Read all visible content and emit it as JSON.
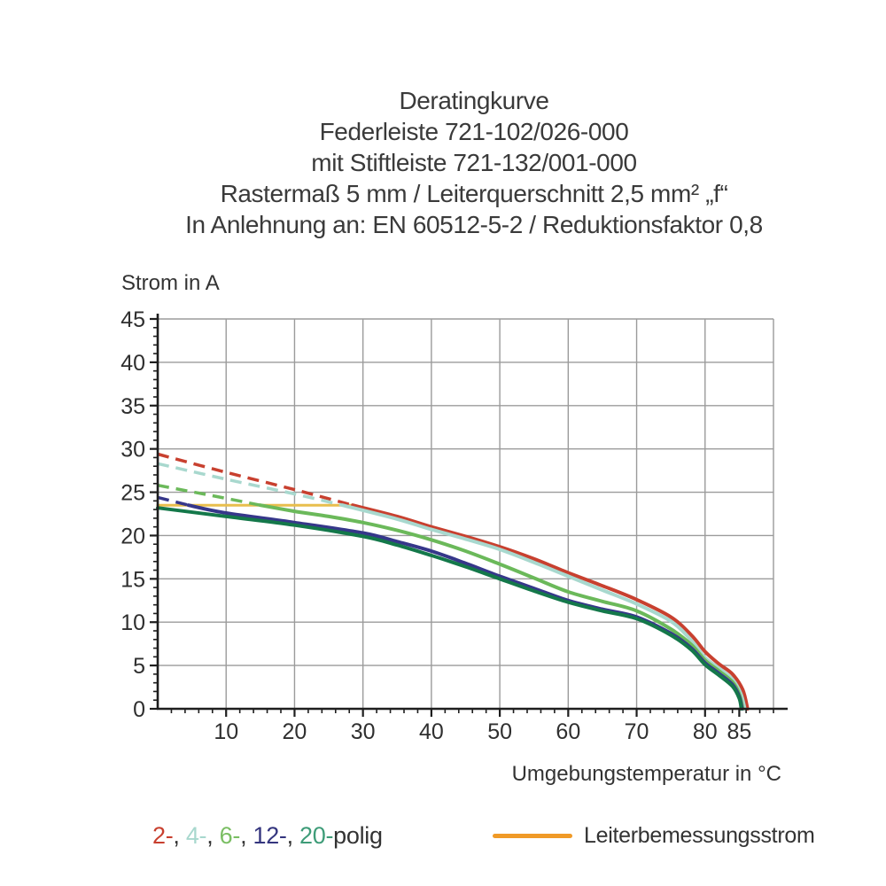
{
  "header": {
    "lines": [
      "Deratingkurve",
      "Federleiste 721-102/026-000",
      "mit Stiftleiste 721-132/001-000",
      "Rastermaß 5 mm / Leiterquerschnitt 2,5 mm² „f“",
      "In Anlehnung an: EN 60512-5-2 / Reduktionsfaktor 0,8"
    ]
  },
  "legend": {
    "poles": [
      {
        "label": "2-",
        "color": "#C8402F"
      },
      {
        "label": "4-",
        "color": "#A8D8CE"
      },
      {
        "label": "6-",
        "color": "#7ABE63"
      },
      {
        "label": "12-",
        "color": "#34357E"
      },
      {
        "label": "20-",
        "color": "#3E9C78"
      }
    ],
    "separator": ", ",
    "suffix": "polig",
    "rated_swatch_color": "#F09A27"
  },
  "chart_data": {
    "type": "line",
    "title": "Deratingkurve Federleiste 721-102/026-000 mit Stiftleiste 721-132/001-000",
    "axes": {
      "x": {
        "label": "Umgebungstemperatur in °C",
        "min": 0,
        "max": 90,
        "grid_step": 10,
        "minor_step": 2,
        "major_ticks": [
          10,
          20,
          30,
          40,
          50,
          60,
          70,
          80,
          85
        ]
      },
      "y": {
        "label": "Strom in A",
        "min": 0,
        "max": 45,
        "grid_step": 5,
        "minor_step": 1,
        "major_ticks": [
          0,
          5,
          10,
          15,
          20,
          25,
          30,
          35,
          40,
          45
        ]
      }
    },
    "grid": true,
    "rated_line": {
      "label": "Leiterbemessungsstrom",
      "value": 23.5,
      "x_start": 0,
      "x_end": 28.5,
      "color": "#E8BE4D"
    },
    "series": [
      {
        "name": "2-polig",
        "poles": 2,
        "color": "#C8402F",
        "dashed": [
          [
            0,
            29.4
          ],
          [
            10,
            27.3
          ],
          [
            20,
            25.3
          ],
          [
            28.5,
            23.5
          ]
        ],
        "solid": [
          [
            28.5,
            23.5
          ],
          [
            35,
            22.2
          ],
          [
            40,
            21.0
          ],
          [
            45,
            19.9
          ],
          [
            50,
            18.7
          ],
          [
            55,
            17.3
          ],
          [
            60,
            15.7
          ],
          [
            65,
            14.2
          ],
          [
            70,
            12.6
          ],
          [
            75,
            10.6
          ],
          [
            78,
            8.5
          ],
          [
            80,
            6.6
          ],
          [
            82,
            5.2
          ],
          [
            84,
            4.0
          ],
          [
            85.5,
            2.2
          ],
          [
            86.2,
            0
          ]
        ]
      },
      {
        "name": "4-polig",
        "poles": 4,
        "color": "#A8D8CE",
        "dashed": [
          [
            0,
            28.3
          ],
          [
            10,
            26.5
          ],
          [
            20,
            24.8
          ],
          [
            27,
            23.5
          ]
        ],
        "solid": [
          [
            27,
            23.5
          ],
          [
            35,
            21.9
          ],
          [
            40,
            20.7
          ],
          [
            45,
            19.6
          ],
          [
            50,
            18.4
          ],
          [
            55,
            16.9
          ],
          [
            60,
            15.3
          ],
          [
            65,
            13.7
          ],
          [
            70,
            12.1
          ],
          [
            75,
            10.1
          ],
          [
            78,
            7.9
          ],
          [
            80,
            5.9
          ],
          [
            82,
            4.7
          ],
          [
            84,
            3.4
          ],
          [
            85.2,
            1.8
          ],
          [
            85.8,
            0
          ]
        ]
      },
      {
        "name": "6-polig",
        "poles": 6,
        "color": "#6BB95A",
        "dashed": [
          [
            0,
            25.8
          ],
          [
            8,
            24.6
          ],
          [
            15,
            23.5
          ]
        ],
        "solid": [
          [
            15,
            23.5
          ],
          [
            20,
            22.8
          ],
          [
            25,
            22.2
          ],
          [
            30,
            21.5
          ],
          [
            35,
            20.6
          ],
          [
            40,
            19.5
          ],
          [
            45,
            18.2
          ],
          [
            50,
            16.7
          ],
          [
            55,
            15.1
          ],
          [
            60,
            13.5
          ],
          [
            65,
            12.4
          ],
          [
            70,
            11.3
          ],
          [
            75,
            9.2
          ],
          [
            78,
            7.4
          ],
          [
            80,
            5.6
          ],
          [
            82,
            4.4
          ],
          [
            84,
            3.1
          ],
          [
            85,
            1.7
          ],
          [
            85.5,
            0
          ]
        ]
      },
      {
        "name": "12-polig",
        "poles": 12,
        "color": "#36378A",
        "dashed": [
          [
            0,
            24.4
          ],
          [
            4.5,
            23.5
          ]
        ],
        "solid": [
          [
            4.5,
            23.5
          ],
          [
            10,
            22.6
          ],
          [
            20,
            21.5
          ],
          [
            30,
            20.3
          ],
          [
            35,
            19.3
          ],
          [
            40,
            18.2
          ],
          [
            45,
            16.8
          ],
          [
            50,
            15.3
          ],
          [
            55,
            13.9
          ],
          [
            60,
            12.5
          ],
          [
            65,
            11.5
          ],
          [
            70,
            10.6
          ],
          [
            75,
            8.7
          ],
          [
            78,
            7.0
          ],
          [
            80,
            5.3
          ],
          [
            82,
            4.1
          ],
          [
            84,
            2.8
          ],
          [
            85,
            1.4
          ],
          [
            85.4,
            0
          ]
        ]
      },
      {
        "name": "20-polig",
        "poles": 20,
        "color": "#14784A",
        "dashed": [],
        "solid": [
          [
            0,
            23.2
          ],
          [
            10,
            22.2
          ],
          [
            20,
            21.2
          ],
          [
            30,
            19.9
          ],
          [
            35,
            18.9
          ],
          [
            40,
            17.7
          ],
          [
            45,
            16.4
          ],
          [
            50,
            15.0
          ],
          [
            55,
            13.6
          ],
          [
            60,
            12.3
          ],
          [
            65,
            11.3
          ],
          [
            70,
            10.4
          ],
          [
            75,
            8.5
          ],
          [
            78,
            6.8
          ],
          [
            80,
            5.1
          ],
          [
            82,
            3.9
          ],
          [
            84,
            2.6
          ],
          [
            85,
            1.2
          ],
          [
            85.3,
            0
          ]
        ]
      }
    ]
  }
}
